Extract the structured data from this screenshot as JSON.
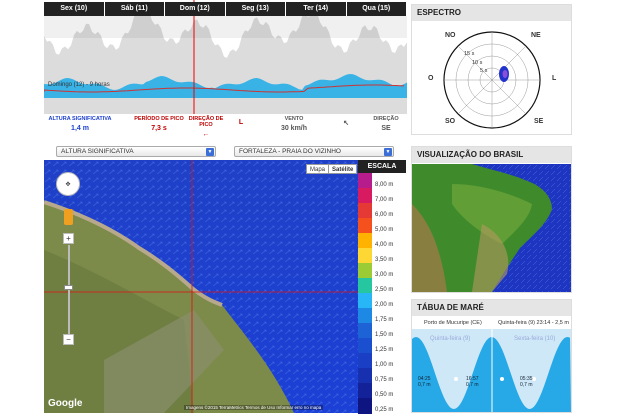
{
  "top_chart": {
    "days": [
      "Sex (10)",
      "Sáb (11)",
      "Dom (12)",
      "Seg (13)",
      "Ter (14)",
      "Qua (15)"
    ],
    "cursor_label": "Domingo (12) - 9 horas",
    "metrics": [
      {
        "label": "ALTURA SIGNIFICATIVA",
        "value": "1,4 m",
        "color": "#1a3fd0"
      },
      {
        "label": "PERÍODO DE PICO",
        "value": "7,3 s",
        "color": "#c00000"
      },
      {
        "label": "DIREÇÃO DE PICO",
        "value": "←",
        "color": "#c00000"
      },
      {
        "label": "",
        "value": "L",
        "color": "#c00000"
      },
      {
        "label": "VENTO",
        "value": "30 km/h",
        "color": "#555"
      },
      {
        "label": "",
        "value": "↖",
        "color": "#555"
      },
      {
        "label": "DIREÇÃO",
        "value": "SE",
        "color": "#555"
      }
    ]
  },
  "selects": {
    "variable": "ALTURA SIGNIFICATIVA",
    "location": "FORTALEZA - PRAIA DO VIZINHO"
  },
  "map": {
    "toggle_map": "Mapa",
    "toggle_sat": "Satélite",
    "google": "Google",
    "footer": "Imagens ©2015 TerraMetrics   Termos de Uso   Informar erro no mapa",
    "scale_title": "ESCALA",
    "scale": [
      {
        "label": "8,00 m",
        "color": "#b71c8c"
      },
      {
        "label": "7,00 m",
        "color": "#d81b60"
      },
      {
        "label": "6,00 m",
        "color": "#e53935"
      },
      {
        "label": "5,00 m",
        "color": "#f4511e"
      },
      {
        "label": "4,00 m",
        "color": "#ffb300"
      },
      {
        "label": "3,50 m",
        "color": "#fdd835"
      },
      {
        "label": "3,00 m",
        "color": "#9ccc35"
      },
      {
        "label": "2,50 m",
        "color": "#26c6a0"
      },
      {
        "label": "2,00 m",
        "color": "#29b6f6"
      },
      {
        "label": "1,75 m",
        "color": "#1e88e5"
      },
      {
        "label": "1,50 m",
        "color": "#1e63d6"
      },
      {
        "label": "1,25 m",
        "color": "#1a4fd0"
      },
      {
        "label": "1,00 m",
        "color": "#1a3fc4"
      },
      {
        "label": "0,75 m",
        "color": "#1730b0"
      },
      {
        "label": "0,50 m",
        "color": "#14229a"
      },
      {
        "label": "0,25 m",
        "color": "#0f1580"
      }
    ]
  },
  "spectrum": {
    "title": "ESPECTRO",
    "compass": {
      "no": "NO",
      "ne": "NE",
      "o": "O",
      "l": "L",
      "so": "SO",
      "se": "SE"
    },
    "rings": [
      "15 s",
      "10 s",
      "5 s"
    ]
  },
  "brazil": {
    "title": "VISUALIZAÇÃO DO BRASIL"
  },
  "tide": {
    "title": "TÁBUA DE MARÉ",
    "station": "Porto de Mucuripe (CE)",
    "selected": "Quinta-feira (9) 23:14 - 2,5 m",
    "days": [
      "Quinta-feira (9)",
      "Sexta-feira (10)"
    ],
    "labels": [
      {
        "time": "04:25",
        "height": "0,7 m"
      },
      {
        "time": "16:57",
        "height": "0,7 m"
      },
      {
        "time": "05:35",
        "height": "0,7 m"
      }
    ]
  }
}
